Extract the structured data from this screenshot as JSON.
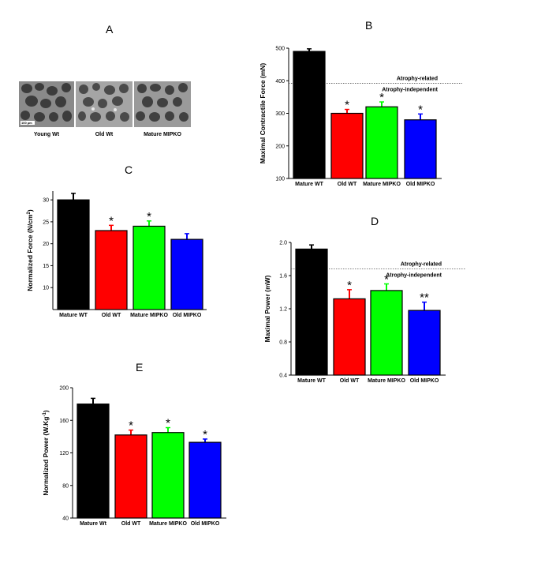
{
  "panel_a": {
    "label": "A",
    "images": [
      {
        "caption": "Young Wt",
        "scale_bar": "100 µm"
      },
      {
        "caption": "Old Wt"
      },
      {
        "caption": "Mature MIPKO"
      }
    ]
  },
  "colors": {
    "Mature WT": "#000000",
    "Old WT": "#ff0000",
    "Mature MIPKO": "#00ff00",
    "Old MIPKO": "#0000ff"
  },
  "chart_data": [
    {
      "id": "B",
      "label": "B",
      "type": "bar",
      "ylabel": "Maximal Contractile Force (mN)",
      "ylim": [
        100,
        500
      ],
      "yticks": [
        100,
        200,
        300,
        400,
        500
      ],
      "tick_format": "0",
      "categories": [
        "Mature WT",
        "Old WT",
        "Mature MIPKO",
        "Old MIPKO"
      ],
      "values": [
        490,
        300,
        320,
        280
      ],
      "errors": [
        8,
        12,
        15,
        18
      ],
      "significance": [
        "",
        "*",
        "*",
        "*"
      ],
      "threshold": {
        "value": 392,
        "above_label": "Atrophy-related",
        "below_label": "Atrophy-independent"
      }
    },
    {
      "id": "C",
      "label": "C",
      "type": "bar",
      "ylabel": "Normalized Force (N/cm",
      "ylabel_sup": "2",
      "ylabel_end": ")",
      "ylim": [
        5,
        32
      ],
      "yticks": [
        10,
        15,
        20,
        25,
        30
      ],
      "tick_format": "0",
      "categories": [
        "Mature WT",
        "Old WT",
        "Mature MIPKO",
        "Old MIPKO"
      ],
      "values": [
        30,
        23,
        24,
        21
      ],
      "errors": [
        1.5,
        1.2,
        1.2,
        1.3
      ],
      "significance": [
        "",
        "*",
        "*",
        ""
      ]
    },
    {
      "id": "D",
      "label": "D",
      "type": "bar",
      "ylabel": "Maximal Power (mW)",
      "ylim": [
        0.4,
        2.0
      ],
      "yticks": [
        0.4,
        0.8,
        1.2,
        1.6,
        2.0
      ],
      "tick_format": "0.0",
      "categories": [
        "Mature WT",
        "Old WT",
        "Mature MIPKO",
        "Old MIPKO"
      ],
      "values": [
        1.92,
        1.32,
        1.42,
        1.18
      ],
      "errors": [
        0.05,
        0.11,
        0.08,
        0.1
      ],
      "significance": [
        "",
        "*",
        "*",
        "**"
      ],
      "threshold": {
        "value": 1.68,
        "above_label": "Atrophy-related",
        "below_label": "Atrophy-independent"
      }
    },
    {
      "id": "E",
      "label": "E",
      "type": "bar",
      "ylabel": "Normalized Power (W.Kg",
      "ylabel_sup": "-1",
      "ylabel_end": ")",
      "ylim": [
        40,
        200
      ],
      "yticks": [
        40,
        80,
        120,
        160,
        200
      ],
      "tick_format": "0",
      "categories": [
        "Mature Wt",
        "Old WT",
        "Mature MIPKO",
        "Old MIPKO"
      ],
      "values": [
        180,
        142,
        145,
        133
      ],
      "errors": [
        7,
        6,
        6,
        4
      ],
      "significance": [
        "",
        "*",
        "*",
        "*"
      ]
    }
  ]
}
